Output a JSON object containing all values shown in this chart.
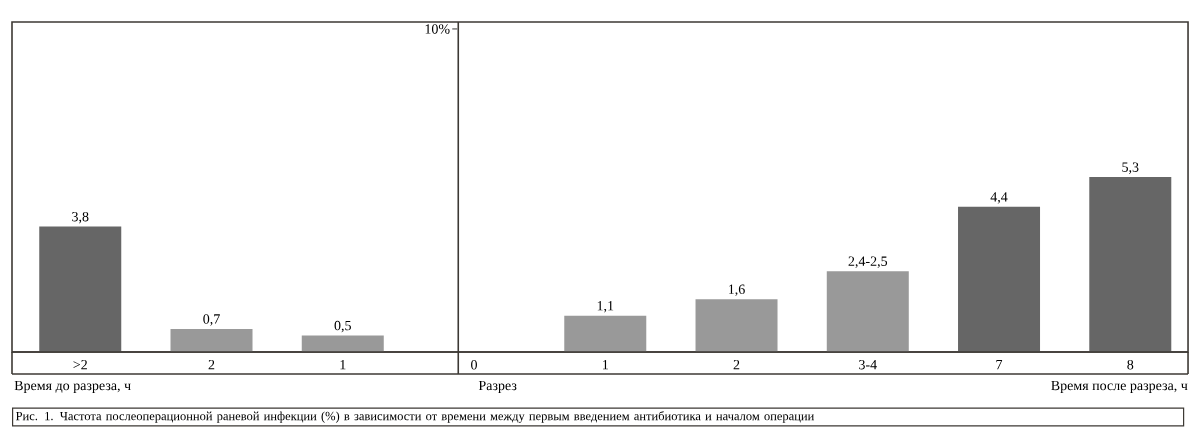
{
  "chart_data": {
    "type": "bar",
    "categories": [
      ">2",
      "2",
      "1",
      "0",
      "1",
      "2",
      "3-4",
      "7",
      "8"
    ],
    "values": [
      3.8,
      0.7,
      0.5,
      null,
      1.1,
      1.6,
      2.45,
      4.4,
      5.3
    ],
    "value_labels": [
      "3,8",
      "0,7",
      "0,5",
      null,
      "1,1",
      "1,6",
      "2,4-2,5",
      "4,4",
      "5,3"
    ],
    "colors": [
      "#666666",
      "#999999",
      "#999999",
      null,
      "#999999",
      "#999999",
      "#999999",
      "#666666",
      "#666666"
    ],
    "ylim": [
      0,
      10
    ],
    "ref_lines": [
      {
        "axis": "x",
        "value": "0",
        "label": "Разрез",
        "color": "#3d3934"
      }
    ],
    "annotations": [
      "Время до разреза, ч",
      "Время после разреза, ч",
      "Рис. 1. Частота послеоперационной раневой инфекции (%) в зависимости от времени между первым введением антибиотика и началом операции",
      "10%"
    ]
  }
}
